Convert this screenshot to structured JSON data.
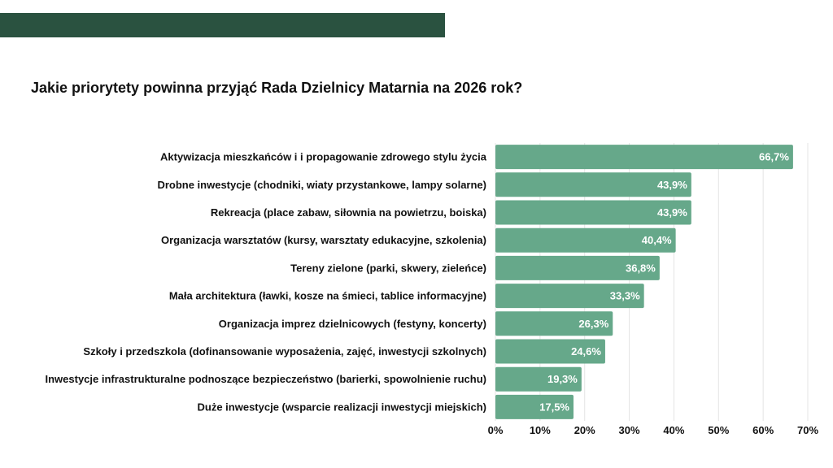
{
  "colors": {
    "header_bar": "#2a5240",
    "bar_fill": "#66a88a",
    "grid": "#e4e4e4",
    "value_text": "#ffffff"
  },
  "chart_data": {
    "type": "bar",
    "orientation": "horizontal",
    "title": "Jakie priorytety powinna przyjąć Rada Dzielnicy Matarnia na 2026 rok?",
    "categories": [
      "Aktywizacja mieszkańców i i propagowanie zdrowego stylu życia",
      "Drobne inwestycje (chodniki, wiaty przystankowe, lampy solarne)",
      "Rekreacja (place zabaw, siłownia na powietrzu, boiska)",
      "Organizacja warsztatów (kursy, warsztaty edukacyjne, szkolenia)",
      "Tereny zielone (parki, skwery, zieleńce)",
      "Mała architektura (ławki, kosze na śmieci, tablice informacyjne)",
      "Organizacja imprez dzielnicowych (festyny, koncerty)",
      "Szkoły i przedszkola (dofinansowanie wyposażenia, zajęć, inwestycji szkolnych)",
      "Inwestycje infrastrukturalne podnoszące bezpieczeństwo (barierki, spowolnienie ruchu)",
      "Duże inwestycje (wsparcie realizacji inwestycji miejskich)"
    ],
    "values": [
      66.7,
      43.9,
      43.9,
      40.4,
      36.8,
      33.3,
      26.3,
      24.6,
      19.3,
      17.5
    ],
    "value_labels": [
      "66,7%",
      "43,9%",
      "43,9%",
      "40,4%",
      "36,8%",
      "33,3%",
      "26,3%",
      "24,6%",
      "19,3%",
      "17,5%"
    ],
    "xlim": [
      0,
      70
    ],
    "x_ticks": [
      0,
      10,
      20,
      30,
      40,
      50,
      60,
      70
    ],
    "x_tick_labels": [
      "0%",
      "10%",
      "20%",
      "30%",
      "40%",
      "50%",
      "60%",
      "70%"
    ],
    "grid": true,
    "xlabel": "",
    "ylabel": ""
  }
}
